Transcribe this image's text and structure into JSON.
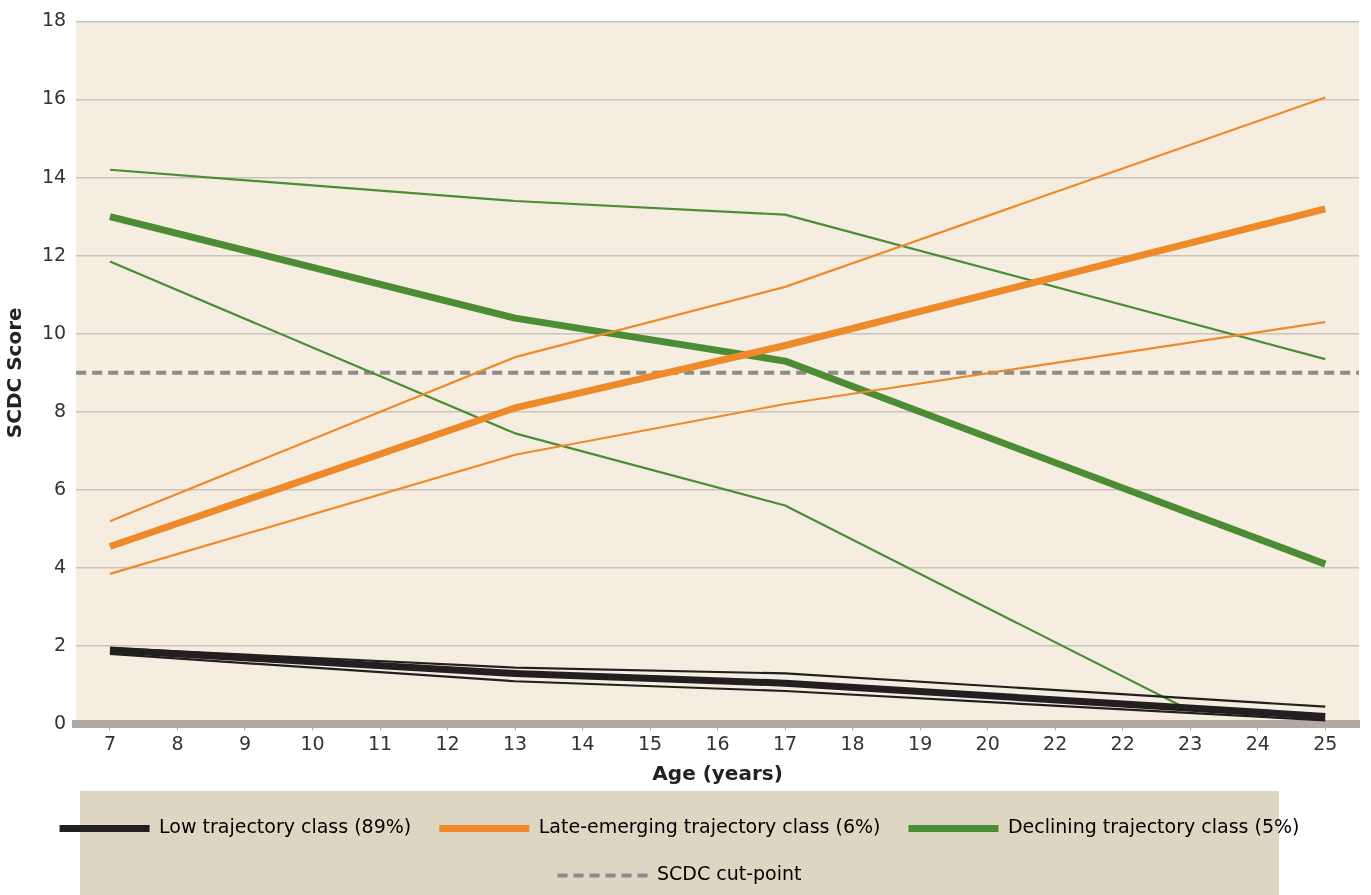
{
  "chart_data": {
    "type": "line",
    "xlabel": "Age (years)",
    "ylabel": "SCDC Score",
    "categories": [
      "7",
      "8",
      "9",
      "10",
      "11",
      "12",
      "13",
      "14",
      "15",
      "16",
      "17",
      "18",
      "19",
      "20",
      "22",
      "22",
      "23",
      "24",
      "25"
    ],
    "ylim": [
      0,
      18
    ],
    "yticks": [
      0,
      2,
      4,
      6,
      8,
      10,
      12,
      14,
      16,
      18
    ],
    "grid": "y",
    "legend": "bottom",
    "marker": "none",
    "line_style": "solid",
    "series": [
      {
        "name": "Low trajectory class (89%)",
        "color": "#231f20",
        "values": [
          1.9,
          null,
          null,
          null,
          null,
          null,
          1.3,
          null,
          null,
          null,
          1.05,
          null,
          null,
          null,
          null,
          null,
          null,
          null,
          0.2
        ]
      },
      {
        "color": "#231f20",
        "values": [
          1.95,
          null,
          null,
          null,
          null,
          null,
          1.45,
          null,
          null,
          null,
          1.3,
          null,
          null,
          null,
          null,
          null,
          null,
          null,
          0.45
        ]
      },
      {
        "color": "#231f20",
        "values": [
          1.8,
          null,
          null,
          null,
          null,
          null,
          1.1,
          null,
          null,
          null,
          0.85,
          null,
          null,
          null,
          null,
          null,
          null,
          null,
          0.1
        ]
      },
      {
        "name": "Late-emerging trajectory class (6%)",
        "color": "#ee8a2a",
        "values": [
          4.55,
          null,
          null,
          null,
          null,
          null,
          8.1,
          null,
          null,
          null,
          9.7,
          null,
          null,
          null,
          null,
          null,
          null,
          null,
          13.2
        ]
      },
      {
        "color": "#ee8a2a",
        "values": [
          5.2,
          null,
          null,
          null,
          null,
          null,
          9.4,
          null,
          null,
          null,
          11.2,
          null,
          null,
          null,
          null,
          null,
          null,
          null,
          16.05
        ]
      },
      {
        "color": "#ee8a2a",
        "values": [
          3.85,
          null,
          null,
          null,
          null,
          null,
          6.9,
          null,
          null,
          null,
          8.2,
          null,
          null,
          null,
          null,
          null,
          null,
          null,
          10.3
        ]
      },
      {
        "name": "Declining trajectory class (5%)",
        "color": "#4b8c34",
        "values": [
          13.0,
          null,
          null,
          null,
          null,
          null,
          10.4,
          null,
          null,
          null,
          9.3,
          null,
          null,
          null,
          null,
          null,
          null,
          null,
          4.1
        ]
      },
      {
        "color": "#4b8c34",
        "values": [
          14.2,
          null,
          null,
          null,
          null,
          null,
          13.4,
          null,
          null,
          null,
          13.05,
          null,
          null,
          null,
          null,
          null,
          null,
          null,
          9.35
        ]
      },
      {
        "color": "#4b8c34",
        "values": [
          11.85,
          null,
          null,
          null,
          null,
          null,
          7.45,
          null,
          null,
          null,
          5.6,
          null,
          null,
          null,
          null,
          null,
          0.35,
          null,
          null
        ]
      }
    ],
    "ref_lines": [
      {
        "axis": "y",
        "value": 9,
        "label": "SCDC cut-point",
        "color": "#8c8c8c",
        "line_style": "dashed"
      }
    ]
  }
}
